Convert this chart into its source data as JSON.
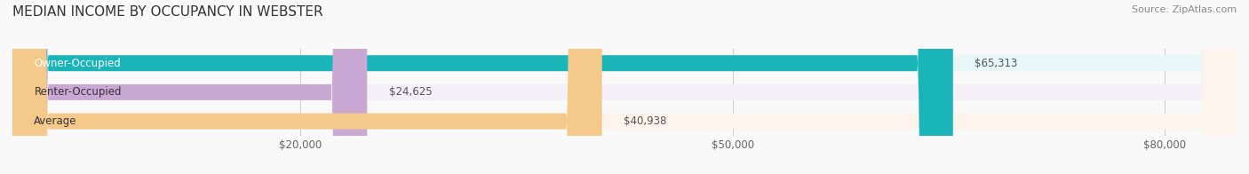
{
  "title": "MEDIAN INCOME BY OCCUPANCY IN WEBSTER",
  "source": "Source: ZipAtlas.com",
  "categories": [
    "Owner-Occupied",
    "Renter-Occupied",
    "Average"
  ],
  "values": [
    65313,
    24625,
    40938
  ],
  "labels": [
    "$65,313",
    "$24,625",
    "$40,938"
  ],
  "bar_colors": [
    "#1ab5b8",
    "#c9a8d4",
    "#f5c98a"
  ],
  "bar_bg_colors": [
    "#e8f8f8",
    "#f5f0f8",
    "#fdf5ec"
  ],
  "xlim": [
    0,
    85000
  ],
  "xticks": [
    0,
    20000,
    50000,
    80000
  ],
  "xticklabels": [
    "",
    "$20,000",
    "$50,000",
    "$80,000"
  ],
  "title_fontsize": 11,
  "label_fontsize": 8.5,
  "bar_label_fontsize": 8.5,
  "source_fontsize": 8,
  "bar_height": 0.55,
  "figsize": [
    14.06,
    1.96
  ],
  "dpi": 100
}
